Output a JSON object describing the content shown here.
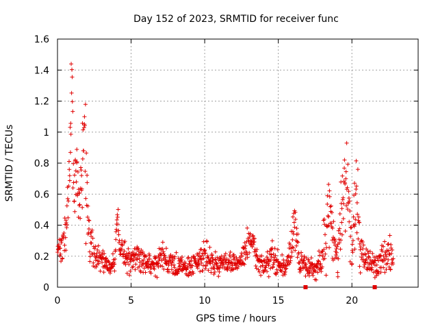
{
  "chart_data": {
    "type": "scatter",
    "title": "Day 152 of 2023, SRMTID for receiver func",
    "xlabel": "GPS time / hours",
    "ylabel": "SRMTID / TECUs",
    "xlim": [
      0,
      24.5
    ],
    "ylim": [
      0,
      1.6
    ],
    "xticks": [
      0,
      5,
      10,
      15,
      20
    ],
    "xtick_labels": [
      "0",
      "5",
      "10",
      "15",
      "20"
    ],
    "yticks": [
      0,
      0.2,
      0.4,
      0.6,
      0.8,
      1,
      1.2,
      1.4,
      1.6
    ],
    "ytick_labels": [
      "0",
      "0.2",
      "0.4",
      "0.6",
      "0.8",
      "1",
      "1.2",
      "1.4",
      "1.6"
    ],
    "grid": true,
    "marker": "+",
    "series_color": "#e00000",
    "profile": [
      [
        0.0,
        0.24,
        0.03
      ],
      [
        0.4,
        0.27,
        0.05
      ],
      [
        0.6,
        0.4,
        0.06
      ],
      [
        0.75,
        0.5,
        0.15
      ],
      [
        0.9,
        0.95,
        0.25
      ],
      [
        1.0,
        1.35,
        0.1
      ],
      [
        1.1,
        0.55,
        0.15
      ],
      [
        1.3,
        0.75,
        0.15
      ],
      [
        1.5,
        0.6,
        0.18
      ],
      [
        1.7,
        0.7,
        0.15
      ],
      [
        1.85,
        1.0,
        0.1
      ],
      [
        1.95,
        0.6,
        0.2
      ],
      [
        2.1,
        0.35,
        0.08
      ],
      [
        2.5,
        0.22,
        0.05
      ],
      [
        3.0,
        0.18,
        0.04
      ],
      [
        3.3,
        0.15,
        0.03
      ],
      [
        3.6,
        0.12,
        0.02
      ],
      [
        3.9,
        0.18,
        0.04
      ],
      [
        4.05,
        0.45,
        0.04
      ],
      [
        4.2,
        0.3,
        0.05
      ],
      [
        4.5,
        0.2,
        0.05
      ],
      [
        5.0,
        0.18,
        0.04
      ],
      [
        5.5,
        0.2,
        0.05
      ],
      [
        6.0,
        0.17,
        0.04
      ],
      [
        6.5,
        0.15,
        0.04
      ],
      [
        7.0,
        0.2,
        0.05
      ],
      [
        7.5,
        0.17,
        0.04
      ],
      [
        8.0,
        0.15,
        0.04
      ],
      [
        8.5,
        0.13,
        0.03
      ],
      [
        9.0,
        0.12,
        0.03
      ],
      [
        9.5,
        0.17,
        0.04
      ],
      [
        10.0,
        0.2,
        0.05
      ],
      [
        10.5,
        0.16,
        0.04
      ],
      [
        11.0,
        0.15,
        0.03
      ],
      [
        11.5,
        0.14,
        0.03
      ],
      [
        12.0,
        0.16,
        0.03
      ],
      [
        12.5,
        0.17,
        0.03
      ],
      [
        13.0,
        0.3,
        0.06
      ],
      [
        13.3,
        0.32,
        0.04
      ],
      [
        13.6,
        0.15,
        0.04
      ],
      [
        14.0,
        0.12,
        0.03
      ],
      [
        14.5,
        0.2,
        0.05
      ],
      [
        15.0,
        0.15,
        0.04
      ],
      [
        15.5,
        0.12,
        0.03
      ],
      [
        15.9,
        0.28,
        0.05
      ],
      [
        16.1,
        0.4,
        0.1
      ],
      [
        16.3,
        0.22,
        0.05
      ],
      [
        16.7,
        0.15,
        0.04
      ],
      [
        17.0,
        0.12,
        0.03
      ],
      [
        17.5,
        0.11,
        0.03
      ],
      [
        18.0,
        0.18,
        0.05
      ],
      [
        18.3,
        0.35,
        0.2
      ],
      [
        18.5,
        0.45,
        0.12
      ],
      [
        18.8,
        0.25,
        0.06
      ],
      [
        19.0,
        0.2,
        0.05
      ],
      [
        19.3,
        0.45,
        0.15
      ],
      [
        19.6,
        0.7,
        0.15
      ],
      [
        19.8,
        0.5,
        0.1
      ],
      [
        20.0,
        0.25,
        0.06
      ],
      [
        20.3,
        0.6,
        0.15
      ],
      [
        20.6,
        0.22,
        0.06
      ],
      [
        21.0,
        0.18,
        0.05
      ],
      [
        21.3,
        0.15,
        0.04
      ],
      [
        21.7,
        0.12,
        0.03
      ],
      [
        22.0,
        0.15,
        0.05
      ],
      [
        22.3,
        0.2,
        0.06
      ],
      [
        22.8,
        0.22,
        0.05
      ]
    ],
    "zero_markers_x": [
      16.85,
      21.55
    ]
  }
}
